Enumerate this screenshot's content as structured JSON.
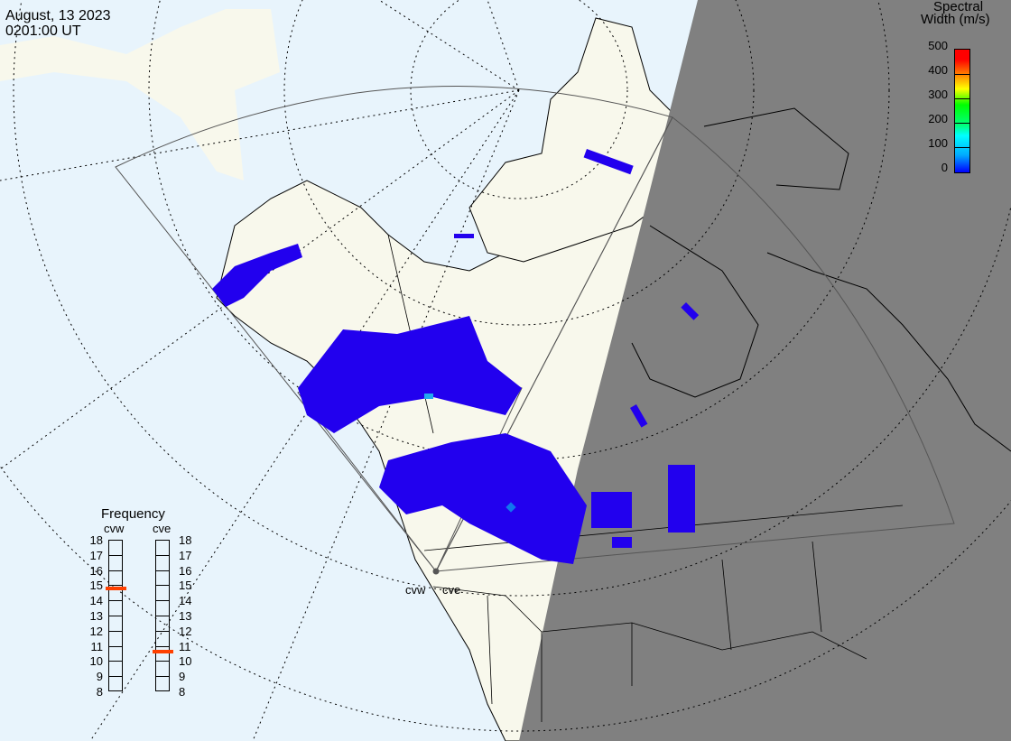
{
  "header": {
    "date": "August, 13 2023",
    "time": "0201:00 UT"
  },
  "colorbar": {
    "title_line1": "Spectral",
    "title_line2": "Width (m/s)",
    "ticks": [
      "500",
      "400",
      "300",
      "200",
      "100",
      "0"
    ],
    "range": [
      0,
      500
    ],
    "colors": [
      "#0000ff",
      "#00ffff",
      "#00ff00",
      "#ffff00",
      "#ff8000",
      "#ff0000"
    ]
  },
  "frequency": {
    "title": "Frequency",
    "radars": [
      {
        "name": "cvw",
        "value": 14.8
      },
      {
        "name": "cve",
        "value": 10.6
      }
    ],
    "ticks": [
      "18",
      "17",
      "16",
      "15",
      "14",
      "13",
      "12",
      "11",
      "10",
      "9",
      "8"
    ],
    "marker_color": "#ff4000"
  },
  "map": {
    "radar_labels": [
      "cvw",
      "cve"
    ],
    "colors": {
      "ocean": "#e8f4fc",
      "land": "#f8f8ec",
      "night": "#808080",
      "scatter": "#2200ee"
    }
  }
}
